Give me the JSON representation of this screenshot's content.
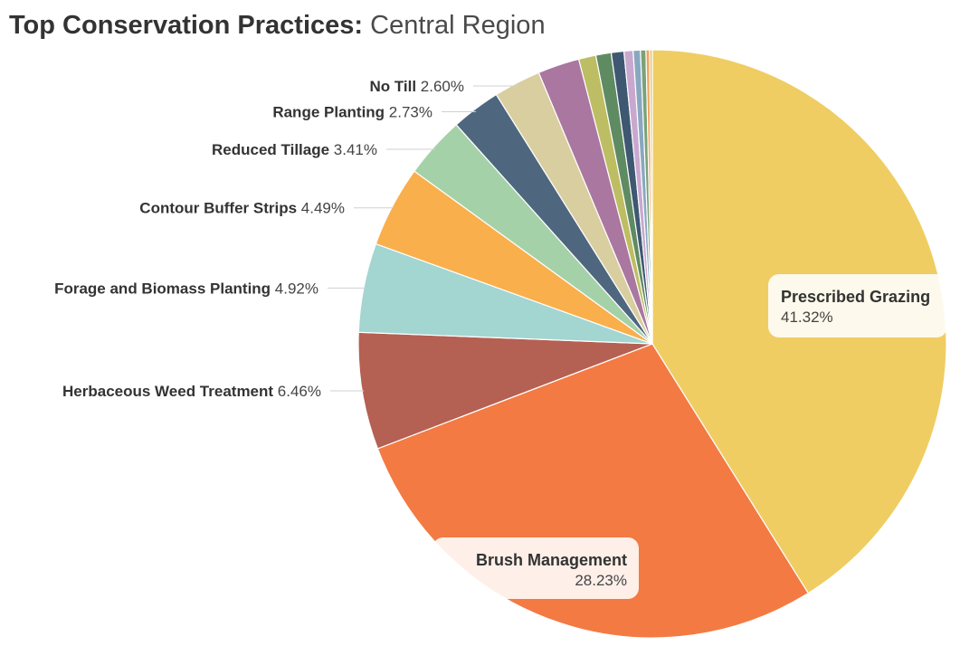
{
  "title": {
    "bold": "Top Conservation Practices:",
    "light": "Central Region"
  },
  "chart_data": {
    "type": "pie",
    "categories": [
      "Prescribed Grazing",
      "Brush Management",
      "Herbaceous Weed Treatment",
      "Forage and Biomass Planting",
      "Contour Buffer Strips",
      "Reduced Tillage",
      "Range Planting",
      "No Till",
      "",
      "",
      "",
      "",
      "",
      "",
      "",
      "",
      ""
    ],
    "values": [
      41.32,
      28.23,
      6.46,
      4.92,
      4.49,
      3.41,
      2.73,
      2.6,
      2.3,
      0.95,
      0.85,
      0.7,
      0.5,
      0.4,
      0.3,
      0.2,
      0.15
    ],
    "value_labels": [
      "41.32%",
      "28.23%",
      "6.46%",
      "4.92%",
      "4.49%",
      "3.41%",
      "2.73%",
      "2.60%",
      "",
      "",
      "",
      "",
      "",
      "",
      "",
      "",
      ""
    ],
    "colors": [
      "#EFCD63",
      "#F37A43",
      "#B46052",
      "#A3D5D1",
      "#F8AF4C",
      "#A5D1A9",
      "#4E677E",
      "#D8CEA0",
      "#AA77A0",
      "#BDBD63",
      "#5F8B62",
      "#3F5872",
      "#C9A8CF",
      "#89A8C0",
      "#79A278",
      "#F2A35E",
      "#E3C77D"
    ],
    "start_angle_deg": 0,
    "direction": "clockwise"
  }
}
